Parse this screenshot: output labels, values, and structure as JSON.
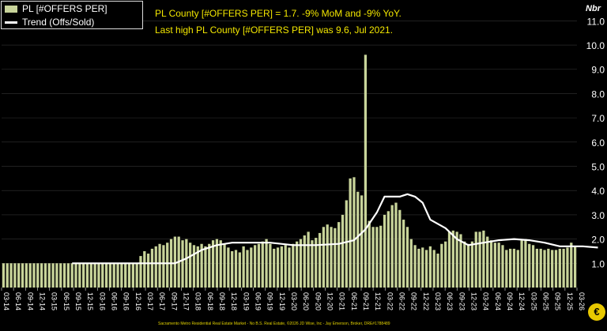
{
  "legend": {
    "bar_label": "PL [#OFFERS PER]",
    "line_label": "Trend (Offs/Sold)"
  },
  "annotations": {
    "line1": "PL County [#OFFERS PER] = 1.7. -9% MoM and -9% YoY.",
    "line2": "Last high PL County [#OFFERS PER] was 9.6, Jul 2021."
  },
  "unit_label": "Nbr",
  "footer": "Sacramento Metro Residential Real Estate Market - No B.S. Real Estate, ©2026 JD Wise, Inc - Jay Emerson, Broker, DRE#1788489",
  "logo": {
    "letter": "€"
  },
  "colors": {
    "bar": "#c8d49a",
    "trend": "#ffffff",
    "annotation": "#f2e600",
    "background": "#000000"
  },
  "chart_data": {
    "type": "bar",
    "ylim": [
      0,
      11.5
    ],
    "yticks": [
      "1.0",
      "2.0",
      "3.0",
      "4.0",
      "5.0",
      "6.0",
      "7.0",
      "8.0",
      "9.0",
      "10.0",
      "11.0"
    ],
    "xtick_labels": [
      "03-14",
      "06-14",
      "09-14",
      "12-14",
      "03-15",
      "06-15",
      "09-15",
      "12-15",
      "03-16",
      "06-16",
      "09-16",
      "12-16",
      "03-17",
      "06-17",
      "09-17",
      "12-17",
      "03-18",
      "06-18",
      "09-18",
      "12-18",
      "03-19",
      "06-19",
      "09-19",
      "12-19",
      "03-20",
      "06-20",
      "09-20",
      "12-20",
      "03-21",
      "06-21",
      "09-21",
      "12-21",
      "03-22",
      "06-22",
      "09-22",
      "12-22",
      "03-23",
      "06-23",
      "09-23",
      "12-23",
      "03-24",
      "06-24",
      "09-24",
      "12-24",
      "03-25",
      "06-25",
      "09-25",
      "12-25",
      "03-26"
    ],
    "series": [
      {
        "name": "PL [#OFFERS PER]",
        "type": "bar",
        "values": [
          1.0,
          1.0,
          1.0,
          1.0,
          1.0,
          1.0,
          1.0,
          1.0,
          1.0,
          1.0,
          1.0,
          1.0,
          1.0,
          1.0,
          1.0,
          1.0,
          1.0,
          1.0,
          1.0,
          1.0,
          1.0,
          1.0,
          1.0,
          1.0,
          1.0,
          1.0,
          1.0,
          1.0,
          1.0,
          1.0,
          1.0,
          1.0,
          1.0,
          1.0,
          1.0,
          1.0,
          1.3,
          1.5,
          1.4,
          1.6,
          1.7,
          1.8,
          1.75,
          1.85,
          2.0,
          2.1,
          2.1,
          1.95,
          2.0,
          1.85,
          1.75,
          1.7,
          1.8,
          1.7,
          1.8,
          1.95,
          2.0,
          1.95,
          1.8,
          1.65,
          1.5,
          1.55,
          1.45,
          1.7,
          1.55,
          1.65,
          1.75,
          1.8,
          1.9,
          2.0,
          1.8,
          1.6,
          1.65,
          1.7,
          1.75,
          1.65,
          1.8,
          1.9,
          2.0,
          2.15,
          2.3,
          1.95,
          2.05,
          2.25,
          2.5,
          2.6,
          2.5,
          2.45,
          2.7,
          3.0,
          3.6,
          4.5,
          4.55,
          3.95,
          3.8,
          9.6,
          2.75,
          2.5,
          2.5,
          2.55,
          3.0,
          3.15,
          3.4,
          3.5,
          3.2,
          2.8,
          2.5,
          2.0,
          1.75,
          1.6,
          1.65,
          1.55,
          1.7,
          1.55,
          1.4,
          1.8,
          1.9,
          2.3,
          2.35,
          2.3,
          2.2,
          1.9,
          1.8,
          1.9,
          2.3,
          2.3,
          2.35,
          2.1,
          1.95,
          1.85,
          1.85,
          1.75,
          1.55,
          1.6,
          1.6,
          1.55,
          1.95,
          2.0,
          1.8,
          1.75,
          1.6,
          1.6,
          1.55,
          1.6,
          1.55,
          1.55,
          1.6,
          1.6,
          1.65,
          1.85,
          1.7
        ]
      },
      {
        "name": "Trend (Offs/Sold)",
        "type": "line",
        "points": [
          [
            18,
            1.0
          ],
          [
            45,
            1.0
          ],
          [
            48,
            1.2
          ],
          [
            52,
            1.55
          ],
          [
            56,
            1.75
          ],
          [
            60,
            1.85
          ],
          [
            64,
            1.85
          ],
          [
            70,
            1.85
          ],
          [
            76,
            1.75
          ],
          [
            82,
            1.75
          ],
          [
            88,
            1.8
          ],
          [
            92,
            1.95
          ],
          [
            95,
            2.4
          ],
          [
            98,
            3.1
          ],
          [
            100,
            3.75
          ],
          [
            104,
            3.75
          ],
          [
            106,
            3.85
          ],
          [
            108,
            3.75
          ],
          [
            110,
            3.5
          ],
          [
            112,
            2.8
          ],
          [
            116,
            2.45
          ],
          [
            119,
            2.0
          ],
          [
            122,
            1.75
          ],
          [
            126,
            1.85
          ],
          [
            130,
            1.95
          ],
          [
            134,
            2.0
          ],
          [
            138,
            1.95
          ],
          [
            142,
            1.85
          ],
          [
            146,
            1.7
          ],
          [
            152,
            1.7
          ],
          [
            156,
            1.65
          ]
        ]
      }
    ]
  }
}
